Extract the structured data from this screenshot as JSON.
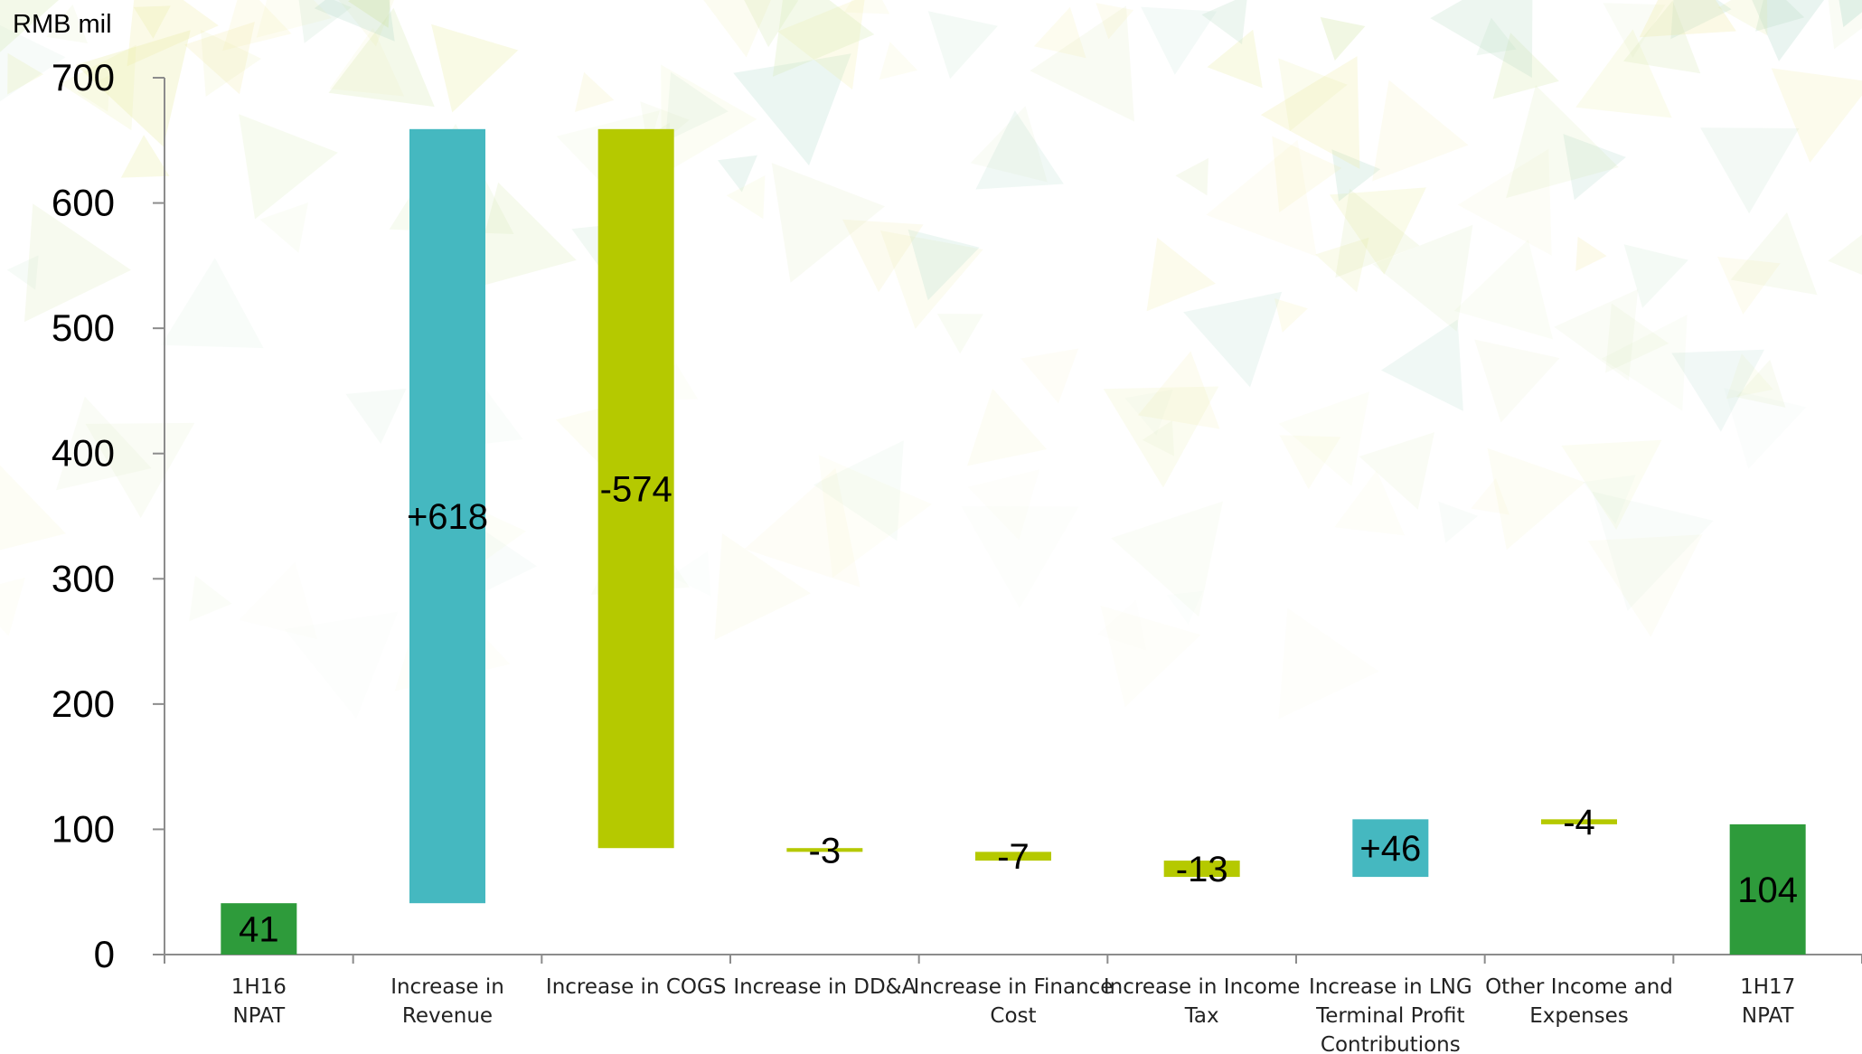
{
  "chart_data": {
    "type": "bar",
    "subtype": "waterfall",
    "unit_label": "RMB mil",
    "ylim": [
      0,
      700
    ],
    "yticks": [
      "0",
      "100",
      "200",
      "300",
      "400",
      "500",
      "600",
      "700"
    ],
    "grid": false,
    "legend": "none",
    "categories": [
      [
        "1H16",
        "NPAT"
      ],
      [
        "Increase in",
        "Revenue"
      ],
      [
        "Increase in COGS"
      ],
      [
        "Increase in DD&A"
      ],
      [
        "Increase in Finance",
        "Cost"
      ],
      [
        "Increase in Income",
        "Tax"
      ],
      [
        "Increase in LNG",
        "Terminal Profit",
        "Contributions"
      ],
      [
        "Other Income and",
        "Expenses"
      ],
      [
        "1H17",
        "NPAT"
      ]
    ],
    "bars": [
      {
        "kind": "total",
        "start": 0,
        "end": 41,
        "label": "41"
      },
      {
        "kind": "increase",
        "start": 41,
        "end": 659,
        "label": "+618"
      },
      {
        "kind": "decrease",
        "start": 659,
        "end": 85,
        "label": "-574"
      },
      {
        "kind": "decrease",
        "start": 85,
        "end": 82,
        "label": "-3"
      },
      {
        "kind": "decrease",
        "start": 82,
        "end": 75,
        "label": "-7"
      },
      {
        "kind": "decrease",
        "start": 75,
        "end": 62,
        "label": "-13"
      },
      {
        "kind": "increase",
        "start": 62,
        "end": 108,
        "label": "+46"
      },
      {
        "kind": "decrease",
        "start": 108,
        "end": 104,
        "label": "-4"
      },
      {
        "kind": "total",
        "start": 0,
        "end": 104,
        "label": "104"
      }
    ],
    "colors": {
      "total": "#2e9b3b",
      "increase": "#45b8c0",
      "decrease": "#b5c900",
      "axis": "#8c8c8c"
    }
  }
}
